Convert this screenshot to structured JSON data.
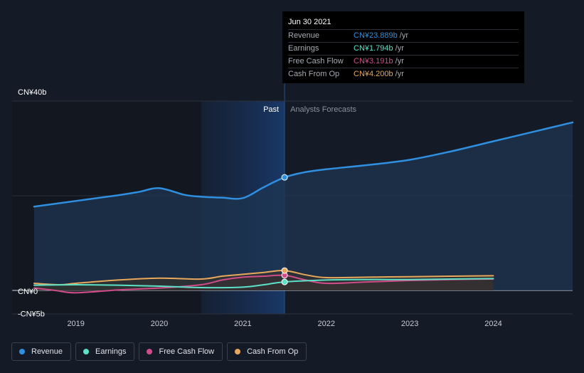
{
  "chart_data": {
    "type": "line",
    "title": "",
    "x_tick_labels": [
      "2019",
      "2020",
      "2021",
      "2022",
      "2023",
      "2024"
    ],
    "y_tick_labels": [
      "CN¥40b",
      "CN¥0",
      "-CN¥5b"
    ],
    "ylim": [
      -5,
      40
    ],
    "x_range": [
      2018.5,
      2024.95
    ],
    "past_label": "Past",
    "forecast_label": "Analysts Forecasts",
    "past_end": 2021.5,
    "highlight_start": 2020.5,
    "series": [
      {
        "name": "Revenue",
        "color": "#2f8fe0",
        "points": [
          [
            2018.5,
            17.7
          ],
          [
            2019.0,
            18.9
          ],
          [
            2019.5,
            20.1
          ],
          [
            2019.75,
            20.8
          ],
          [
            2020.0,
            21.6
          ],
          [
            2020.3,
            20.2
          ],
          [
            2020.5,
            19.8
          ],
          [
            2020.75,
            19.6
          ],
          [
            2021.0,
            19.5
          ],
          [
            2021.25,
            21.8
          ],
          [
            2021.5,
            23.889
          ],
          [
            2021.75,
            25.0
          ],
          [
            2022.0,
            25.6
          ],
          [
            2022.5,
            26.5
          ],
          [
            2023.0,
            27.6
          ],
          [
            2023.5,
            29.4
          ],
          [
            2024.0,
            31.5
          ],
          [
            2024.5,
            33.6
          ],
          [
            2024.95,
            35.5
          ]
        ]
      },
      {
        "name": "Earnings",
        "color": "#5de0c8",
        "points": [
          [
            2018.5,
            1.1
          ],
          [
            2019.0,
            1.2
          ],
          [
            2019.5,
            1.1
          ],
          [
            2020.0,
            0.9
          ],
          [
            2020.5,
            0.6
          ],
          [
            2021.0,
            0.7
          ],
          [
            2021.25,
            1.2
          ],
          [
            2021.5,
            1.794
          ],
          [
            2022.0,
            2.2
          ],
          [
            2022.5,
            2.3
          ],
          [
            2023.0,
            2.3
          ],
          [
            2023.5,
            2.4
          ],
          [
            2024.0,
            2.5
          ]
        ]
      },
      {
        "name": "Free Cash Flow",
        "color": "#d04c8a",
        "points": [
          [
            2018.5,
            0.5
          ],
          [
            2018.75,
            0.0
          ],
          [
            2019.0,
            -0.5
          ],
          [
            2019.5,
            0.1
          ],
          [
            2020.0,
            0.5
          ],
          [
            2020.5,
            1.2
          ],
          [
            2020.75,
            2.2
          ],
          [
            2021.0,
            2.8
          ],
          [
            2021.25,
            3.0
          ],
          [
            2021.5,
            3.191
          ],
          [
            2021.75,
            2.2
          ],
          [
            2022.0,
            1.5
          ],
          [
            2022.5,
            1.8
          ],
          [
            2023.0,
            2.1
          ],
          [
            2023.5,
            2.3
          ],
          [
            2024.0,
            2.4
          ]
        ]
      },
      {
        "name": "Cash From Op",
        "color": "#e8a85c",
        "points": [
          [
            2018.5,
            1.5
          ],
          [
            2018.8,
            1.2
          ],
          [
            2019.0,
            1.5
          ],
          [
            2019.5,
            2.2
          ],
          [
            2020.0,
            2.6
          ],
          [
            2020.5,
            2.4
          ],
          [
            2020.75,
            3.0
          ],
          [
            2021.0,
            3.4
          ],
          [
            2021.25,
            3.8
          ],
          [
            2021.5,
            4.2
          ],
          [
            2021.75,
            3.3
          ],
          [
            2022.0,
            2.7
          ],
          [
            2022.5,
            2.8
          ],
          [
            2023.0,
            2.9
          ],
          [
            2023.5,
            3.0
          ],
          [
            2024.0,
            3.1
          ]
        ]
      }
    ],
    "grid": true,
    "legend_position": "bottom-left"
  },
  "tooltip": {
    "date": "Jun 30 2021",
    "rows": [
      {
        "label": "Revenue",
        "value": "CN¥23.889b",
        "unit": "/yr",
        "color": "#2f8fe0"
      },
      {
        "label": "Earnings",
        "value": "CN¥1.794b",
        "unit": "/yr",
        "color": "#5de0c8"
      },
      {
        "label": "Free Cash Flow",
        "value": "CN¥3.191b",
        "unit": "/yr",
        "color": "#d04c8a"
      },
      {
        "label": "Cash From Op",
        "value": "CN¥4.200b",
        "unit": "/yr",
        "color": "#e8a85c"
      }
    ]
  },
  "legend": [
    {
      "label": "Revenue",
      "color": "#2f8fe0"
    },
    {
      "label": "Earnings",
      "color": "#5de0c8"
    },
    {
      "label": "Free Cash Flow",
      "color": "#d04c8a"
    },
    {
      "label": "Cash From Op",
      "color": "#e8a85c"
    }
  ]
}
